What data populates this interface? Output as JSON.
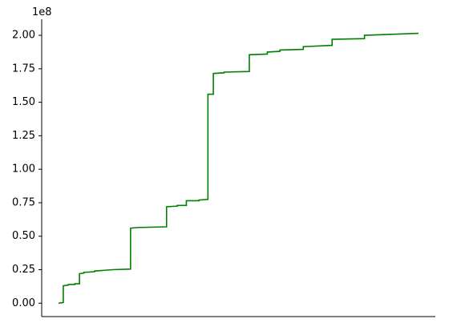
{
  "chart_data": {
    "type": "line",
    "title": "",
    "xlabel": "",
    "ylabel": "",
    "y_offset_label": "1e8",
    "y_scale": 100000000.0,
    "xlim": [
      -0.047,
      1.047
    ],
    "ylim": [
      -0.1,
      2.12
    ],
    "x_ticks_shown": false,
    "y_ticks": [
      {
        "value": 0.0,
        "label": "0.00"
      },
      {
        "value": 0.25,
        "label": "0.25"
      },
      {
        "value": 0.5,
        "label": "0.50"
      },
      {
        "value": 0.75,
        "label": "0.75"
      },
      {
        "value": 1.0,
        "label": "1.00"
      },
      {
        "value": 1.25,
        "label": "1.25"
      },
      {
        "value": 1.5,
        "label": "1.50"
      },
      {
        "value": 1.75,
        "label": "1.75"
      },
      {
        "value": 2.0,
        "label": "2.00"
      }
    ],
    "grid": false,
    "spines": {
      "top": false,
      "right": false,
      "left": true,
      "bottom": true
    },
    "colors": {
      "series": "#008000",
      "axis": "#000000"
    },
    "series": [
      {
        "x": [
          0.0,
          0.013,
          0.013,
          0.027,
          0.027,
          0.045,
          0.045,
          0.058,
          0.058,
          0.07,
          0.07,
          0.1,
          0.1,
          0.15,
          0.2,
          0.2,
          0.22,
          0.22,
          0.3,
          0.3,
          0.33,
          0.33,
          0.355,
          0.355,
          0.39,
          0.39,
          0.415,
          0.415,
          0.415,
          0.43,
          0.43,
          0.46,
          0.46,
          0.53,
          0.53,
          0.58,
          0.58,
          0.615,
          0.615,
          0.68,
          0.68,
          0.76,
          0.76,
          0.85,
          0.85,
          1.0
        ],
        "y": [
          0.0,
          0.005,
          0.13,
          0.135,
          0.14,
          0.14,
          0.145,
          0.145,
          0.22,
          0.225,
          0.23,
          0.235,
          0.24,
          0.25,
          0.255,
          0.56,
          0.565,
          0.565,
          0.57,
          0.72,
          0.725,
          0.73,
          0.73,
          0.765,
          0.765,
          0.77,
          0.775,
          1.555,
          1.56,
          1.56,
          1.715,
          1.72,
          1.725,
          1.73,
          1.855,
          1.86,
          1.875,
          1.88,
          1.89,
          1.895,
          1.915,
          1.925,
          1.97,
          1.975,
          2.0,
          2.015
        ]
      }
    ]
  }
}
